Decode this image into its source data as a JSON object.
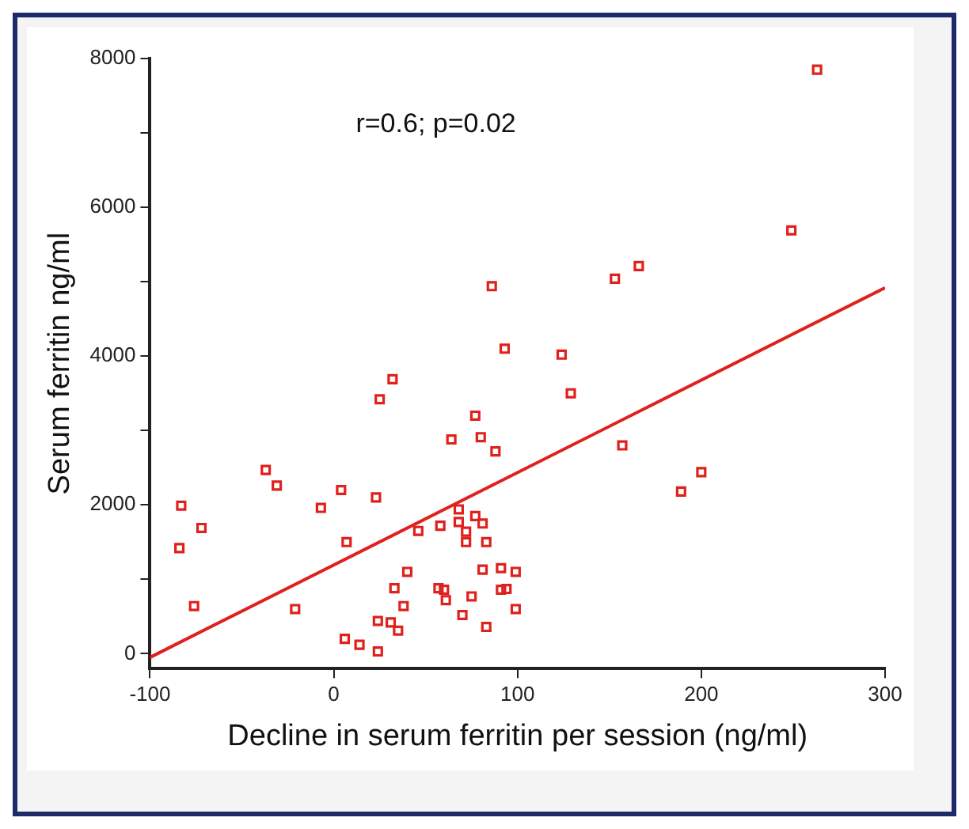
{
  "chart_data": {
    "type": "scatter",
    "xlabel": "Decline in serum ferritin per session (ng/ml)",
    "ylabel": "Serum ferritin ng/ml",
    "annotations": [
      "r=0.6; p=0.02"
    ],
    "xlim": [
      -100,
      300
    ],
    "xticks": [
      -100,
      0,
      100,
      200,
      300
    ],
    "ylim": [
      -200,
      8000
    ],
    "yticks": [
      0,
      {
        "value": 1000,
        "label": null
      },
      2000,
      {
        "value": 3000,
        "label": null
      },
      4000,
      {
        "value": 5000,
        "label": null
      },
      6000,
      {
        "value": 7000,
        "label": null
      },
      8000
    ],
    "grid": false,
    "legend": false,
    "marker": "square",
    "series": [
      {
        "type": "scatter",
        "color": "#e0201c",
        "x": [
          263,
          249,
          166,
          153,
          86,
          93,
          124,
          129,
          77,
          64,
          80,
          88,
          157,
          200,
          189,
          68,
          77,
          68,
          81,
          58,
          46,
          72,
          72,
          83,
          81,
          91,
          99,
          57,
          60,
          91,
          94,
          61,
          75,
          99,
          70,
          83,
          32,
          25,
          -37,
          -31,
          -83,
          4,
          -7,
          23,
          -72,
          -84,
          7,
          40,
          33,
          -76,
          -21,
          38,
          24,
          31,
          35,
          6,
          14,
          24
        ],
        "values": [
          7850,
          5690,
          5210,
          5040,
          4940,
          4100,
          4020,
          3500,
          3200,
          2880,
          2910,
          2720,
          2800,
          2440,
          2180,
          1940,
          1850,
          1770,
          1750,
          1720,
          1650,
          1640,
          1500,
          1500,
          1130,
          1150,
          1100,
          880,
          860,
          860,
          870,
          720,
          770,
          600,
          520,
          360,
          3690,
          3420,
          2470,
          2260,
          1990,
          2200,
          1960,
          2100,
          1690,
          1420,
          1500,
          1100,
          880,
          640,
          600,
          640,
          440,
          420,
          310,
          200,
          120,
          30
        ]
      },
      {
        "type": "line",
        "color": "#e0201c",
        "marker": "none",
        "x": [
          -100,
          300
        ],
        "values": [
          -50,
          4920
        ]
      }
    ]
  }
}
